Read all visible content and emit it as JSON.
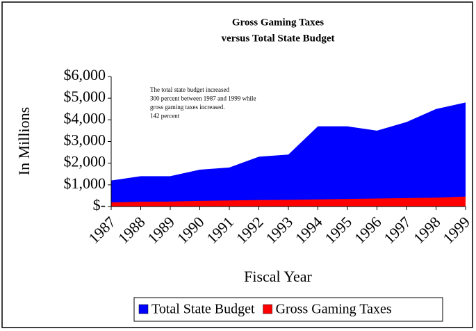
{
  "chart_data": {
    "type": "area",
    "title": "Gross Gaming Taxes",
    "subtitle": "versus Total State Budget",
    "annotation": [
      "The total state budget increased",
      "300 percent between 1987 and 1999 while",
      "gross gaming taxes increased.",
      "142 percent"
    ],
    "x_label": "Fiscal Year",
    "y_label": "In Millions",
    "categories": [
      "1987",
      "1988",
      "1989",
      "1990",
      "1991",
      "1992",
      "1993",
      "1994",
      "1995",
      "1996",
      "1997",
      "1998",
      "1999"
    ],
    "series": [
      {
        "name": "Total State Budget",
        "color": "#0000ff",
        "values": [
          1200,
          1400,
          1400,
          1700,
          1800,
          2300,
          2400,
          3700,
          3700,
          3500,
          3900,
          4500,
          4800
        ]
      },
      {
        "name": "Gross Gaming Taxes",
        "color": "#ff0000",
        "values": [
          190,
          220,
          230,
          260,
          280,
          300,
          310,
          330,
          350,
          370,
          390,
          410,
          460
        ]
      }
    ],
    "ylim": [
      0,
      6000
    ],
    "yticks": [
      {
        "value": 0,
        "label": "$-"
      },
      {
        "value": 1000,
        "label": "$1,000"
      },
      {
        "value": 2000,
        "label": "$2,000"
      },
      {
        "value": 3000,
        "label": "$3,000"
      },
      {
        "value": 4000,
        "label": "$4,000"
      },
      {
        "value": 5000,
        "label": "$5,000"
      },
      {
        "value": 6000,
        "label": "$6,000"
      }
    ],
    "legend_position": "bottom"
  }
}
